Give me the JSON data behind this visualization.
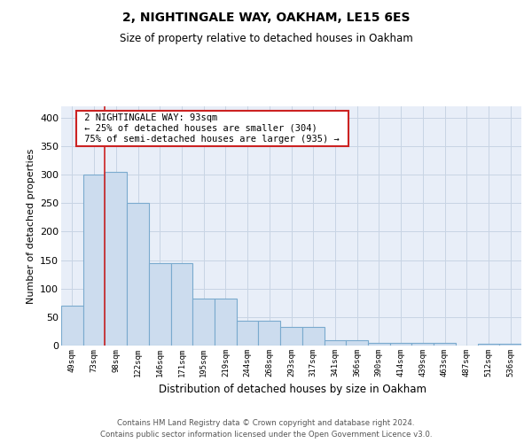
{
  "title": "2, NIGHTINGALE WAY, OAKHAM, LE15 6ES",
  "subtitle": "Size of property relative to detached houses in Oakham",
  "xlabel": "Distribution of detached houses by size in Oakham",
  "ylabel": "Number of detached properties",
  "footer_line1": "Contains HM Land Registry data © Crown copyright and database right 2024.",
  "footer_line2": "Contains public sector information licensed under the Open Government Licence v3.0.",
  "categories": [
    "49sqm",
    "73sqm",
    "98sqm",
    "122sqm",
    "146sqm",
    "171sqm",
    "195sqm",
    "219sqm",
    "244sqm",
    "268sqm",
    "293sqm",
    "317sqm",
    "341sqm",
    "366sqm",
    "390sqm",
    "414sqm",
    "439sqm",
    "463sqm",
    "487sqm",
    "512sqm",
    "536sqm"
  ],
  "bar_values": [
    70,
    300,
    305,
    250,
    145,
    145,
    82,
    82,
    44,
    44,
    32,
    32,
    9,
    9,
    5,
    5,
    5,
    5,
    0,
    3,
    3
  ],
  "bar_color": "#ccdcee",
  "bar_edge_color": "#7aaace",
  "red_line_x": 1.5,
  "annotation_line1": "2 NIGHTINGALE WAY: 93sqm",
  "annotation_line2": "← 25% of detached houses are smaller (304)",
  "annotation_line3": "75% of semi-detached houses are larger (935) →",
  "ylim_max": 420,
  "yticks": [
    0,
    50,
    100,
    150,
    200,
    250,
    300,
    350,
    400
  ],
  "bg_color": "#e8eef8",
  "grid_color": "#d0d8e8",
  "red_color": "#cc2222",
  "ann_box_color": "#cc2222",
  "title_fontsize": 10,
  "subtitle_fontsize": 8.5
}
